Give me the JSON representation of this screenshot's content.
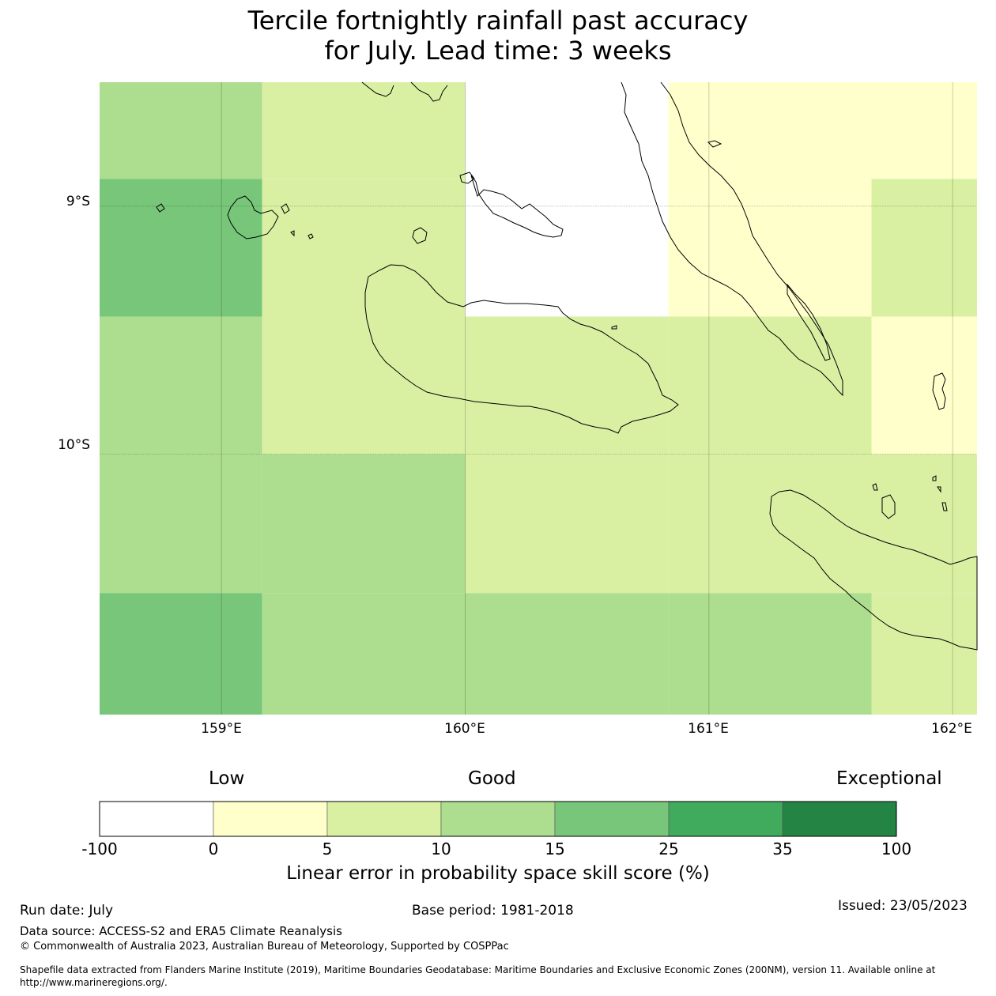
{
  "title": {
    "line1": "Tercile fortnightly rainfall past accuracy",
    "line2": "for July. Lead time: 3 weeks"
  },
  "map": {
    "lon_range": [
      158.5,
      162.1
    ],
    "lat_range": [
      -11.05,
      -8.5
    ],
    "yticks": [
      "9°S",
      "10°S"
    ],
    "xticks": [
      "159°E",
      "160°E",
      "161°E",
      "162°E"
    ],
    "category_colors": {
      "-100to0": "#ffffff",
      "0to5": "#ffffcc",
      "5to10": "#d9f0a3",
      "10to15": "#addd8e",
      "15to25": "#78c679",
      "25to35": "#41ab5d",
      "35to100": "#238443"
    },
    "grid_cells": [
      {
        "lon": [
          158.5,
          159.167
        ],
        "lat": [
          -8.89,
          -8.5
        ],
        "category": "10to15"
      },
      {
        "lon": [
          159.167,
          160.0
        ],
        "lat": [
          -8.89,
          -8.5
        ],
        "category": "5to10"
      },
      {
        "lon": [
          160.0,
          160.833
        ],
        "lat": [
          -8.89,
          -8.5
        ],
        "category": "-100to0"
      },
      {
        "lon": [
          160.833,
          161.667
        ],
        "lat": [
          -8.89,
          -8.5
        ],
        "category": "0to5"
      },
      {
        "lon": [
          161.667,
          162.1
        ],
        "lat": [
          -8.89,
          -8.5
        ],
        "category": "0to5"
      },
      {
        "lon": [
          158.5,
          159.167
        ],
        "lat": [
          -9.445,
          -8.89
        ],
        "category": "15to25"
      },
      {
        "lon": [
          159.167,
          160.0
        ],
        "lat": [
          -9.445,
          -8.89
        ],
        "category": "5to10"
      },
      {
        "lon": [
          160.0,
          160.833
        ],
        "lat": [
          -9.445,
          -8.89
        ],
        "category": "-100to0"
      },
      {
        "lon": [
          160.833,
          161.667
        ],
        "lat": [
          -9.445,
          -8.89
        ],
        "category": "0to5"
      },
      {
        "lon": [
          161.667,
          162.1
        ],
        "lat": [
          -9.445,
          -8.89
        ],
        "category": "5to10"
      },
      {
        "lon": [
          158.5,
          159.167
        ],
        "lat": [
          -10.0,
          -9.445
        ],
        "category": "10to15"
      },
      {
        "lon": [
          159.167,
          160.0
        ],
        "lat": [
          -10.0,
          -9.445
        ],
        "category": "5to10"
      },
      {
        "lon": [
          160.0,
          160.833
        ],
        "lat": [
          -10.0,
          -9.445
        ],
        "category": "5to10"
      },
      {
        "lon": [
          160.833,
          161.667
        ],
        "lat": [
          -10.0,
          -9.445
        ],
        "category": "5to10"
      },
      {
        "lon": [
          161.667,
          162.1
        ],
        "lat": [
          -10.0,
          -9.445
        ],
        "category": "0to5"
      },
      {
        "lon": [
          158.5,
          159.167
        ],
        "lat": [
          -10.56,
          -10.0
        ],
        "category": "10to15"
      },
      {
        "lon": [
          159.167,
          160.0
        ],
        "lat": [
          -10.56,
          -10.0
        ],
        "category": "10to15"
      },
      {
        "lon": [
          160.0,
          160.833
        ],
        "lat": [
          -10.56,
          -10.0
        ],
        "category": "5to10"
      },
      {
        "lon": [
          160.833,
          161.667
        ],
        "lat": [
          -10.56,
          -10.0
        ],
        "category": "5to10"
      },
      {
        "lon": [
          161.667,
          162.1
        ],
        "lat": [
          -10.56,
          -10.0
        ],
        "category": "5to10"
      },
      {
        "lon": [
          158.5,
          159.167
        ],
        "lat": [
          -11.05,
          -10.56
        ],
        "category": "15to25"
      },
      {
        "lon": [
          159.167,
          160.0
        ],
        "lat": [
          -11.05,
          -10.56
        ],
        "category": "10to15"
      },
      {
        "lon": [
          160.0,
          160.833
        ],
        "lat": [
          -11.05,
          -10.56
        ],
        "category": "10to15"
      },
      {
        "lon": [
          160.833,
          161.667
        ],
        "lat": [
          -11.05,
          -10.56
        ],
        "category": "10to15"
      },
      {
        "lon": [
          161.667,
          162.1
        ],
        "lat": [
          -11.05,
          -10.56
        ],
        "category": "5to10"
      }
    ]
  },
  "legend": {
    "low_label": "Low",
    "good_label": "Good",
    "exceptional_label": "Exceptional",
    "ticks": [
      "-100",
      "0",
      "5",
      "10",
      "15",
      "25",
      "35",
      "100"
    ],
    "colors": [
      "#ffffff",
      "#ffffcc",
      "#d9f0a3",
      "#addd8e",
      "#78c679",
      "#41ab5d",
      "#238443"
    ],
    "label": "Linear error in probability space skill score (%)"
  },
  "footer": {
    "run_date": "Run date: July",
    "base_period": "Base period: 1981-2018",
    "issued": "Issued: 23/05/2023",
    "data_source": "Data source: ACCESS-S2 and ERA5 Climate Reanalysis",
    "copyright": "© Commonwealth of Australia 2023, Australian Bureau of Meteorology, Supported by COSPPac",
    "shapefile_line1": "Shapefile data extracted from Flanders Marine Institute (2019), Maritime Boundaries Geodatabase: Maritime Boundaries and Exclusive Economic Zones (200NM), version 11. Available online at",
    "shapefile_line2": "http://www.marineregions.org/."
  }
}
